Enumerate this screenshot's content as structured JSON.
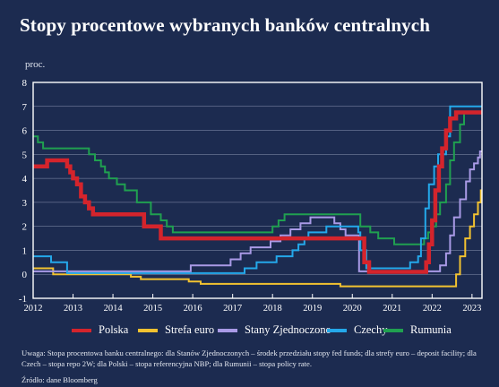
{
  "title": "Stopy procentowe wybranych banków centralnych",
  "unit_label": "proc.",
  "note": "Uwaga: Stopa procentowa banku centralnego: dla Stanów Zjednoczonych – środek przedziału stopy fed funds; dla strefy euro – deposit facility; dla Czech – stopa repo 2W; dla Polski – stopa referencyjna NBP; dla Rumunii – stopa policy rate.",
  "source": "Źródło: dane Bloomberg",
  "colors": {
    "background": "#1c2b50",
    "plot_border": "#ffffff",
    "gridline": "#8e98b4"
  },
  "chart_data": {
    "type": "line",
    "title": "Stopy procentowe wybranych banków centralnych",
    "ylabel": "proc.",
    "xlim": [
      2012.0,
      2023.25
    ],
    "ylim": [
      -1,
      8
    ],
    "yticks": [
      -1,
      0,
      1,
      2,
      3,
      4,
      5,
      6,
      7,
      8
    ],
    "xticks": [
      2012,
      2013,
      2014,
      2015,
      2016,
      2017,
      2018,
      2019,
      2020,
      2021,
      2022,
      2023
    ],
    "grid": "horizontal",
    "legend_position": "bottom",
    "series": [
      {
        "name": "Polska",
        "color": "#d4242c",
        "line_width": 4.5,
        "step": true,
        "points": [
          [
            2012.0,
            4.5
          ],
          [
            2012.35,
            4.75
          ],
          [
            2012.8,
            4.75
          ],
          [
            2012.85,
            4.5
          ],
          [
            2012.93,
            4.25
          ],
          [
            2013.0,
            4.0
          ],
          [
            2013.1,
            3.75
          ],
          [
            2013.2,
            3.25
          ],
          [
            2013.3,
            3.0
          ],
          [
            2013.4,
            2.75
          ],
          [
            2013.5,
            2.5
          ],
          [
            2014.75,
            2.5
          ],
          [
            2014.78,
            2.0
          ],
          [
            2015.2,
            1.5
          ],
          [
            2020.2,
            1.5
          ],
          [
            2020.3,
            0.5
          ],
          [
            2020.42,
            0.1
          ],
          [
            2021.8,
            0.1
          ],
          [
            2021.85,
            0.5
          ],
          [
            2021.92,
            1.25
          ],
          [
            2022.0,
            2.25
          ],
          [
            2022.08,
            3.5
          ],
          [
            2022.17,
            4.5
          ],
          [
            2022.25,
            5.25
          ],
          [
            2022.35,
            6.0
          ],
          [
            2022.45,
            6.5
          ],
          [
            2022.6,
            6.75
          ],
          [
            2023.25,
            6.75
          ]
        ]
      },
      {
        "name": "Strefa euro",
        "color": "#f2c230",
        "line_width": 2,
        "step": true,
        "points": [
          [
            2012.0,
            0.25
          ],
          [
            2012.5,
            0.0
          ],
          [
            2014.45,
            -0.1
          ],
          [
            2014.7,
            -0.2
          ],
          [
            2015.9,
            -0.3
          ],
          [
            2016.2,
            -0.4
          ],
          [
            2019.7,
            -0.5
          ],
          [
            2022.55,
            -0.5
          ],
          [
            2022.6,
            0.0
          ],
          [
            2022.7,
            0.75
          ],
          [
            2022.83,
            1.5
          ],
          [
            2022.95,
            2.0
          ],
          [
            2023.05,
            2.5
          ],
          [
            2023.15,
            3.0
          ],
          [
            2023.22,
            3.5
          ],
          [
            2023.25,
            3.5
          ]
        ]
      },
      {
        "name": "Stany Zjednoczone",
        "color": "#a99ae6",
        "line_width": 2,
        "step": true,
        "points": [
          [
            2012.0,
            0.125
          ],
          [
            2015.95,
            0.375
          ],
          [
            2016.95,
            0.625
          ],
          [
            2017.2,
            0.875
          ],
          [
            2017.45,
            1.125
          ],
          [
            2017.95,
            1.375
          ],
          [
            2018.2,
            1.625
          ],
          [
            2018.45,
            1.875
          ],
          [
            2018.7,
            2.125
          ],
          [
            2018.95,
            2.375
          ],
          [
            2019.55,
            2.125
          ],
          [
            2019.7,
            1.875
          ],
          [
            2019.83,
            1.625
          ],
          [
            2020.17,
            0.125
          ],
          [
            2022.2,
            0.375
          ],
          [
            2022.35,
            0.875
          ],
          [
            2022.45,
            1.625
          ],
          [
            2022.55,
            2.375
          ],
          [
            2022.7,
            3.125
          ],
          [
            2022.85,
            3.875
          ],
          [
            2022.95,
            4.375
          ],
          [
            2023.05,
            4.625
          ],
          [
            2023.15,
            4.875
          ],
          [
            2023.2,
            5.125
          ],
          [
            2023.25,
            5.125
          ]
        ]
      },
      {
        "name": "Czechy",
        "color": "#24a8ea",
        "line_width": 2,
        "step": true,
        "points": [
          [
            2012.0,
            0.75
          ],
          [
            2012.45,
            0.5
          ],
          [
            2012.85,
            0.05
          ],
          [
            2017.3,
            0.25
          ],
          [
            2017.6,
            0.5
          ],
          [
            2018.1,
            0.75
          ],
          [
            2018.5,
            1.0
          ],
          [
            2018.65,
            1.25
          ],
          [
            2018.8,
            1.5
          ],
          [
            2018.9,
            1.75
          ],
          [
            2019.35,
            2.0
          ],
          [
            2020.15,
            1.75
          ],
          [
            2020.2,
            1.0
          ],
          [
            2020.35,
            0.25
          ],
          [
            2021.45,
            0.5
          ],
          [
            2021.65,
            0.75
          ],
          [
            2021.72,
            1.5
          ],
          [
            2021.83,
            2.75
          ],
          [
            2021.92,
            3.75
          ],
          [
            2022.05,
            4.5
          ],
          [
            2022.15,
            5.0
          ],
          [
            2022.35,
            5.75
          ],
          [
            2022.45,
            7.0
          ],
          [
            2023.25,
            7.0
          ]
        ]
      },
      {
        "name": "Rumunia",
        "color": "#20a050",
        "line_width": 2,
        "step": true,
        "points": [
          [
            2012.0,
            5.75
          ],
          [
            2012.12,
            5.5
          ],
          [
            2012.25,
            5.25
          ],
          [
            2013.4,
            5.0
          ],
          [
            2013.55,
            4.75
          ],
          [
            2013.7,
            4.5
          ],
          [
            2013.8,
            4.25
          ],
          [
            2013.9,
            4.0
          ],
          [
            2014.1,
            3.75
          ],
          [
            2014.3,
            3.5
          ],
          [
            2014.6,
            3.0
          ],
          [
            2014.95,
            2.5
          ],
          [
            2015.2,
            2.25
          ],
          [
            2015.35,
            2.0
          ],
          [
            2015.5,
            1.75
          ],
          [
            2018.0,
            2.0
          ],
          [
            2018.15,
            2.25
          ],
          [
            2018.3,
            2.5
          ],
          [
            2020.2,
            2.0
          ],
          [
            2020.45,
            1.75
          ],
          [
            2020.65,
            1.5
          ],
          [
            2021.05,
            1.25
          ],
          [
            2021.8,
            1.5
          ],
          [
            2021.9,
            1.75
          ],
          [
            2022.0,
            2.0
          ],
          [
            2022.1,
            2.5
          ],
          [
            2022.2,
            3.0
          ],
          [
            2022.35,
            3.75
          ],
          [
            2022.45,
            4.75
          ],
          [
            2022.55,
            5.5
          ],
          [
            2022.7,
            6.25
          ],
          [
            2022.8,
            6.75
          ],
          [
            2023.25,
            6.75
          ]
        ]
      }
    ]
  }
}
